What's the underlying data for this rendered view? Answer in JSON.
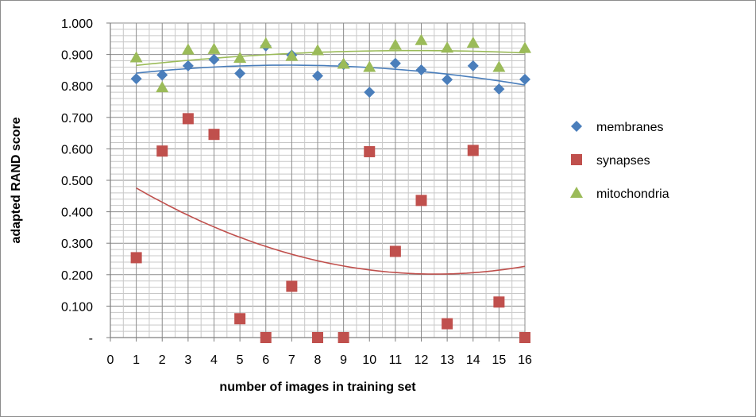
{
  "chart_data": {
    "type": "scatter",
    "title": "",
    "xlabel": "number of images in training set",
    "ylabel": "adapted RAND score",
    "xlim": [
      0,
      16
    ],
    "ylim": [
      0,
      1
    ],
    "x_ticks": [
      "0",
      "1",
      "2",
      "3",
      "4",
      "5",
      "6",
      "7",
      "8",
      "9",
      "10",
      "11",
      "12",
      "13",
      "14",
      "15",
      "16"
    ],
    "y_ticks": [
      "-",
      "0.100",
      "0.200",
      "0.300",
      "0.400",
      "0.500",
      "0.600",
      "0.700",
      "0.800",
      "0.900",
      "1.000"
    ],
    "grid": true,
    "legend_position": "right",
    "x": [
      1,
      2,
      3,
      4,
      5,
      6,
      7,
      8,
      9,
      10,
      11,
      12,
      13,
      14,
      15,
      16
    ],
    "series": [
      {
        "name": "membranes",
        "marker": "diamond",
        "color": "#4a7ebb",
        "values": [
          0.823,
          0.835,
          0.864,
          0.884,
          0.84,
          0.927,
          0.898,
          0.832,
          0.868,
          0.78,
          0.872,
          0.851,
          0.82,
          0.864,
          0.79,
          0.821
        ],
        "trendline": "polynomial",
        "trend_color": "#4a7ebb"
      },
      {
        "name": "synapses",
        "marker": "square",
        "color": "#c0504d",
        "values": [
          0.254,
          0.593,
          0.696,
          0.646,
          0.06,
          0.0,
          0.163,
          0.0,
          0.0,
          0.591,
          0.274,
          0.436,
          0.044,
          0.595,
          0.113,
          0.0
        ],
        "trendline": "polynomial",
        "trend_color": "#c0504d"
      },
      {
        "name": "mitochondria",
        "marker": "triangle",
        "color": "#9bbb59",
        "values": [
          0.89,
          0.795,
          0.915,
          0.917,
          0.889,
          0.935,
          0.895,
          0.913,
          0.87,
          0.86,
          0.93,
          0.945,
          0.921,
          0.937,
          0.86,
          0.92
        ],
        "trendline": "polynomial",
        "trend_color": "#9bbb59"
      }
    ]
  }
}
